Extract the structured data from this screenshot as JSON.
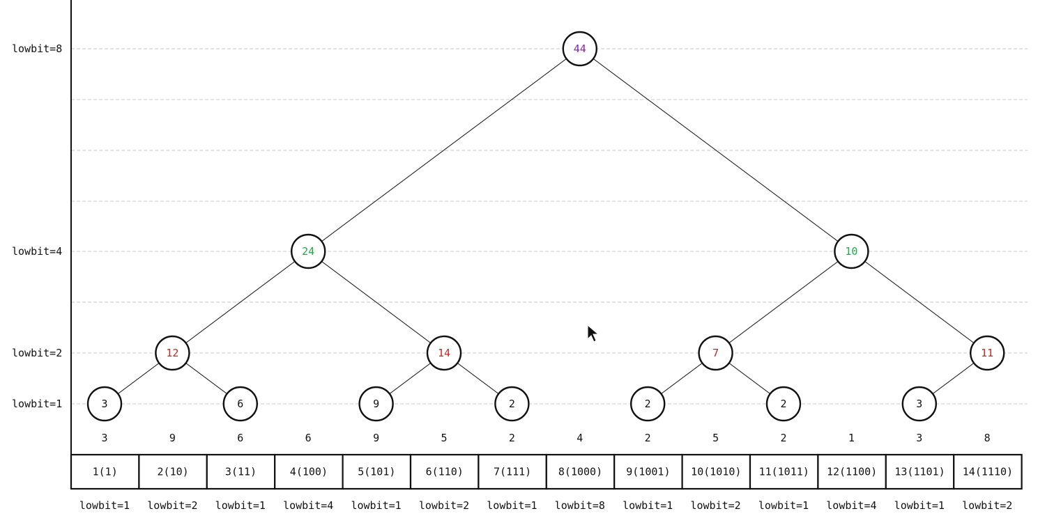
{
  "level_labels": [
    {
      "text": "lowbit=8",
      "level": 8
    },
    {
      "text": "lowbit=4",
      "level": 4
    },
    {
      "text": "lowbit=2",
      "level": 2
    },
    {
      "text": "lowbit=1",
      "level": 1
    }
  ],
  "colors": {
    "level8": "#8e1fb0",
    "level4": "#1faa4a",
    "level2": "#c0281e",
    "level1": "#111111"
  },
  "nodes": [
    {
      "id": "n8",
      "index": 8,
      "level": 8,
      "value": "44",
      "parent": null
    },
    {
      "id": "n4",
      "index": 4,
      "level": 4,
      "value": "24",
      "parent": "n8"
    },
    {
      "id": "n12",
      "index": 12,
      "level": 4,
      "value": "10",
      "parent": "n8"
    },
    {
      "id": "n2",
      "index": 2,
      "level": 2,
      "value": "12",
      "parent": "n4"
    },
    {
      "id": "n6",
      "index": 6,
      "level": 2,
      "value": "14",
      "parent": "n4"
    },
    {
      "id": "n10",
      "index": 10,
      "level": 2,
      "value": "7",
      "parent": "n12"
    },
    {
      "id": "n14",
      "index": 14,
      "level": 2,
      "value": "11",
      "parent": "n12"
    },
    {
      "id": "n1",
      "index": 1,
      "level": 1,
      "value": "3",
      "parent": "n2"
    },
    {
      "id": "n3",
      "index": 3,
      "level": 1,
      "value": "6",
      "parent": "n2"
    },
    {
      "id": "n5",
      "index": 5,
      "level": 1,
      "value": "9",
      "parent": "n6"
    },
    {
      "id": "n7",
      "index": 7,
      "level": 1,
      "value": "2",
      "parent": "n6"
    },
    {
      "id": "n9",
      "index": 9,
      "level": 1,
      "value": "2",
      "parent": "n10"
    },
    {
      "id": "n11",
      "index": 11,
      "level": 1,
      "value": "2",
      "parent": "n10"
    },
    {
      "id": "n13",
      "index": 13,
      "level": 1,
      "value": "3",
      "parent": "n14"
    }
  ],
  "array_values": [
    "3",
    "9",
    "6",
    "6",
    "9",
    "5",
    "2",
    "4",
    "2",
    "5",
    "2",
    "1",
    "3",
    "8"
  ],
  "index_cells": [
    "1(1)",
    "2(10)",
    "3(11)",
    "4(100)",
    "5(101)",
    "6(110)",
    "7(111)",
    "8(1000)",
    "9(1001)",
    "10(1010)",
    "11(1011)",
    "12(1100)",
    "13(1101)",
    "14(1110)"
  ],
  "lowbit_labels": [
    "lowbit=1",
    "lowbit=2",
    "lowbit=1",
    "lowbit=4",
    "lowbit=1",
    "lowbit=2",
    "lowbit=1",
    "lowbit=8",
    "lowbit=1",
    "lowbit=2",
    "lowbit=1",
    "lowbit=4",
    "lowbit=1",
    "lowbit=2"
  ]
}
